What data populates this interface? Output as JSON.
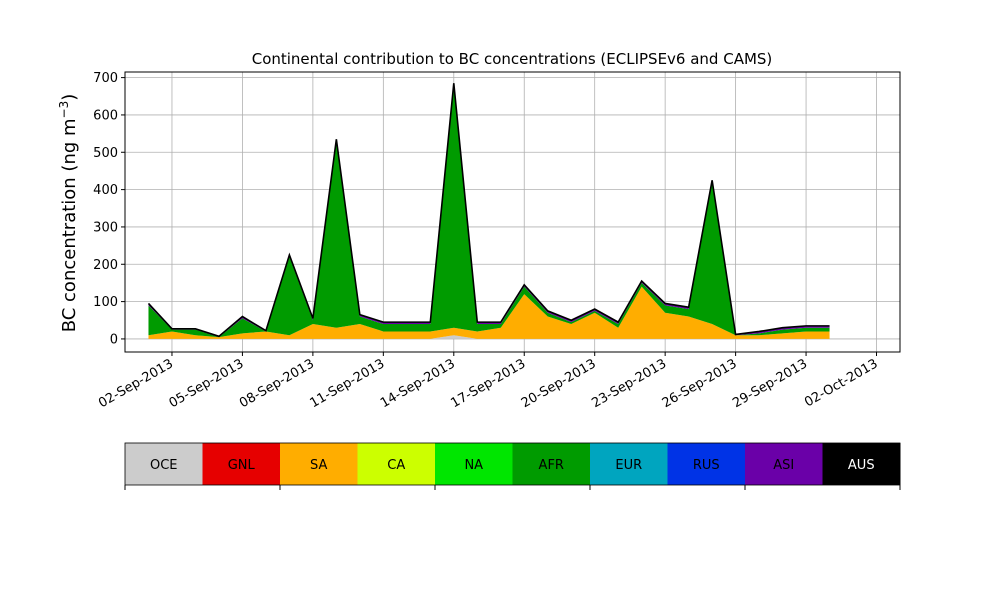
{
  "chart_data": {
    "type": "area",
    "stacked": true,
    "title": "Continental contribution to BC concentrations (ECLIPSEv6 and CAMS)",
    "ylabel": "BC concentration (ng m",
    "ylabel_superscript": "−3",
    "ylabel_close": ")",
    "xlim": [
      "2013-08-31",
      "2013-10-03"
    ],
    "ylim": [
      -35,
      715
    ],
    "x_ticks": [
      "02-Sep-2013",
      "05-Sep-2013",
      "08-Sep-2013",
      "11-Sep-2013",
      "14-Sep-2013",
      "17-Sep-2013",
      "20-Sep-2013",
      "23-Sep-2013",
      "26-Sep-2013",
      "29-Sep-2013",
      "02-Oct-2013"
    ],
    "y_ticks": [
      0,
      100,
      200,
      300,
      400,
      500,
      600,
      700
    ],
    "grid": true,
    "dates": [
      "2013-09-01",
      "2013-09-02",
      "2013-09-03",
      "2013-09-04",
      "2013-09-05",
      "2013-09-06",
      "2013-09-07",
      "2013-09-08",
      "2013-09-09",
      "2013-09-10",
      "2013-09-11",
      "2013-09-12",
      "2013-09-13",
      "2013-09-14",
      "2013-09-15",
      "2013-09-16",
      "2013-09-17",
      "2013-09-18",
      "2013-09-19",
      "2013-09-20",
      "2013-09-21",
      "2013-09-22",
      "2013-09-23",
      "2013-09-24",
      "2013-09-25",
      "2013-09-26",
      "2013-09-27",
      "2013-09-28",
      "2013-09-29",
      "2013-09-30"
    ],
    "series": [
      {
        "name": "OCE",
        "color": "#cccccc",
        "values": [
          0,
          0,
          0,
          0,
          0,
          0,
          0,
          0,
          0,
          0,
          0,
          0,
          0,
          10,
          0,
          0,
          0,
          0,
          0,
          0,
          0,
          0,
          0,
          0,
          0,
          0,
          0,
          0,
          0,
          0
        ]
      },
      {
        "name": "GNL",
        "color": "#e60000",
        "values": [
          0,
          0,
          0,
          0,
          0,
          0,
          0,
          0,
          0,
          0,
          0,
          0,
          0,
          0,
          0,
          0,
          0,
          0,
          0,
          0,
          0,
          0,
          0,
          0,
          0,
          0,
          0,
          0,
          0,
          0
        ]
      },
      {
        "name": "SA",
        "color": "#ffad00",
        "values": [
          10,
          20,
          10,
          5,
          15,
          20,
          10,
          40,
          30,
          40,
          20,
          20,
          20,
          20,
          20,
          30,
          120,
          60,
          40,
          70,
          30,
          140,
          70,
          60,
          40,
          10,
          10,
          15,
          20,
          20
        ]
      },
      {
        "name": "CA",
        "color": "#ccff00",
        "values": [
          0,
          0,
          0,
          0,
          0,
          0,
          0,
          0,
          0,
          0,
          0,
          0,
          0,
          0,
          0,
          0,
          0,
          0,
          0,
          0,
          0,
          0,
          0,
          0,
          0,
          0,
          0,
          0,
          0,
          0
        ]
      },
      {
        "name": "NA",
        "color": "#00e600",
        "values": [
          0,
          0,
          0,
          0,
          0,
          0,
          0,
          0,
          0,
          0,
          0,
          0,
          0,
          0,
          0,
          0,
          0,
          0,
          0,
          0,
          0,
          0,
          0,
          0,
          0,
          0,
          0,
          0,
          0,
          0
        ]
      },
      {
        "name": "AFR",
        "color": "#009b00",
        "values": [
          80,
          5,
          15,
          0,
          40,
          0,
          210,
          10,
          500,
          20,
          20,
          20,
          20,
          650,
          20,
          10,
          20,
          10,
          5,
          5,
          10,
          10,
          20,
          20,
          380,
          0,
          5,
          10,
          10,
          10
        ]
      },
      {
        "name": "EUR",
        "color": "#00a5bf",
        "values": [
          0,
          0,
          0,
          0,
          0,
          0,
          0,
          0,
          0,
          0,
          0,
          0,
          0,
          0,
          0,
          0,
          0,
          0,
          0,
          0,
          0,
          0,
          0,
          0,
          0,
          0,
          0,
          0,
          0,
          0
        ]
      },
      {
        "name": "RUS",
        "color": "#0033e6",
        "values": [
          0,
          0,
          0,
          0,
          0,
          0,
          0,
          0,
          0,
          0,
          0,
          0,
          0,
          0,
          0,
          0,
          0,
          0,
          0,
          0,
          0,
          0,
          0,
          0,
          0,
          0,
          0,
          0,
          0,
          0
        ]
      },
      {
        "name": "ASI",
        "color": "#6a00a8",
        "values": [
          5,
          2,
          2,
          2,
          5,
          2,
          5,
          5,
          5,
          5,
          5,
          5,
          5,
          5,
          5,
          5,
          5,
          5,
          5,
          5,
          5,
          5,
          5,
          5,
          5,
          2,
          5,
          5,
          5,
          5
        ]
      },
      {
        "name": "AUS",
        "color": "#000000",
        "values": [
          0,
          0,
          0,
          0,
          0,
          0,
          0,
          0,
          0,
          0,
          0,
          0,
          0,
          0,
          0,
          0,
          0,
          0,
          0,
          0,
          0,
          0,
          0,
          0,
          0,
          0,
          0,
          0,
          0,
          0
        ]
      }
    ]
  },
  "legend": {
    "labels": [
      "OCE",
      "GNL",
      "SA",
      "CA",
      "NA",
      "AFR",
      "EUR",
      "RUS",
      "ASI",
      "AUS"
    ],
    "colors": [
      "#cccccc",
      "#e60000",
      "#ffad00",
      "#ccff00",
      "#00e600",
      "#009b00",
      "#00a5bf",
      "#0033e6",
      "#6a00a8",
      "#000000"
    ],
    "text_colors": [
      "#000000",
      "#000000",
      "#000000",
      "#000000",
      "#000000",
      "#000000",
      "#000000",
      "#000000",
      "#000000",
      "#ffffff"
    ]
  }
}
